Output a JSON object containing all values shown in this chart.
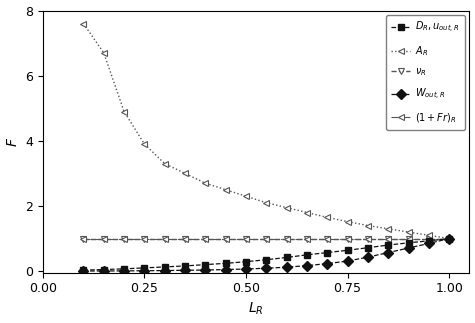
{
  "title": "",
  "xlabel": "$L_R$",
  "ylabel": "F",
  "xlim": [
    0.0,
    1.05
  ],
  "ylim": [
    -0.05,
    8.0
  ],
  "xticks": [
    0.0,
    0.25,
    0.5,
    0.75,
    1.0
  ],
  "yticks": [
    0,
    2,
    4,
    6,
    8
  ],
  "L_R": [
    0.1,
    0.15,
    0.2,
    0.25,
    0.3,
    0.35,
    0.4,
    0.45,
    0.5,
    0.55,
    0.6,
    0.65,
    0.7,
    0.75,
    0.8,
    0.85,
    0.9,
    0.95,
    1.0
  ],
  "A_R": [
    7.6,
    6.7,
    4.9,
    3.9,
    3.3,
    3.0,
    2.7,
    2.5,
    2.3,
    2.1,
    1.95,
    1.8,
    1.65,
    1.52,
    1.4,
    1.3,
    1.2,
    1.1,
    1.0
  ],
  "t_R": [
    1.0,
    1.0,
    1.0,
    1.0,
    1.0,
    1.0,
    1.0,
    1.0,
    1.0,
    1.0,
    1.0,
    1.0,
    1.0,
    1.0,
    1.0,
    1.0,
    1.0,
    1.0,
    1.0
  ],
  "D_R_u": [
    0.03,
    0.05,
    0.07,
    0.1,
    0.13,
    0.16,
    0.2,
    0.24,
    0.29,
    0.35,
    0.42,
    0.5,
    0.57,
    0.64,
    0.72,
    0.8,
    0.87,
    0.93,
    1.0
  ],
  "W_out_R": [
    0.003,
    0.005,
    0.008,
    0.012,
    0.018,
    0.025,
    0.035,
    0.048,
    0.065,
    0.09,
    0.12,
    0.17,
    0.23,
    0.31,
    0.43,
    0.57,
    0.71,
    0.85,
    1.0
  ],
  "onepFr_R": [
    1.0,
    1.0,
    1.0,
    1.0,
    1.0,
    1.0,
    1.0,
    1.0,
    1.0,
    1.0,
    1.0,
    1.0,
    1.0,
    1.0,
    1.0,
    1.0,
    1.0,
    1.0,
    1.0
  ],
  "color_lines": "#555555",
  "color_dark": "#111111",
  "legend_DR_u": "$D_R, u_{out,R}$",
  "legend_AR": "$A_R$",
  "legend_tR": "$\\nu_R$",
  "legend_WoutR": "$W_{out,R}$",
  "legend_1pFrR": "$(1+Fr)_R$"
}
